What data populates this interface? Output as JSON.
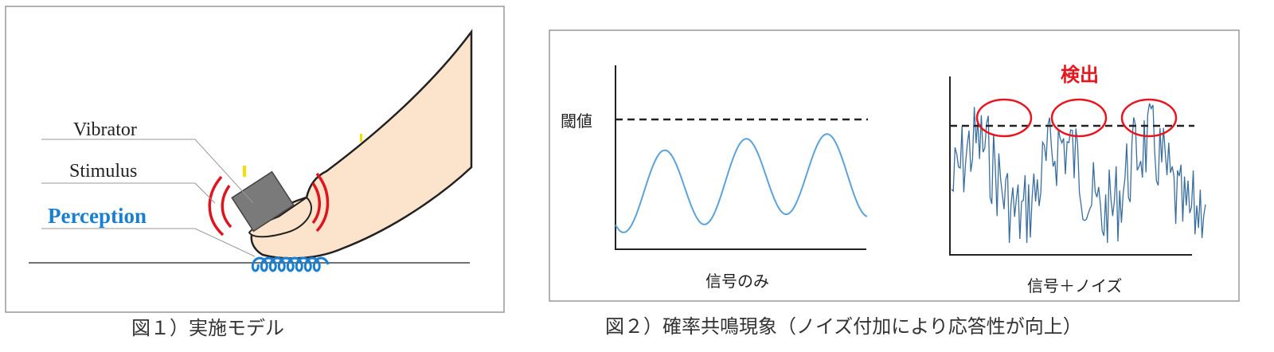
{
  "figure1": {
    "labels": {
      "vibrator": "Vibrator",
      "stimulus": "Stimulus",
      "perception": "Perception"
    },
    "caption": "図１）実施モデル",
    "colors": {
      "skin": "#fbe3cc",
      "vibrator": "#7a7a7a",
      "stimulus_waves": "#e0141e",
      "perception_wave": "#1a7fd0"
    }
  },
  "figure2": {
    "threshold_label": "閾値",
    "left_panel_label": "信号のみ",
    "right_panel_label": "信号＋ノイズ",
    "detection_label": "検出",
    "caption": "図２）確率共鳴現象（ノイズ付加により応答性が向上）",
    "colors": {
      "signal": "#5ba3d9",
      "noisy_signal": "#3a6e9e",
      "detection": "#e8141e"
    }
  }
}
